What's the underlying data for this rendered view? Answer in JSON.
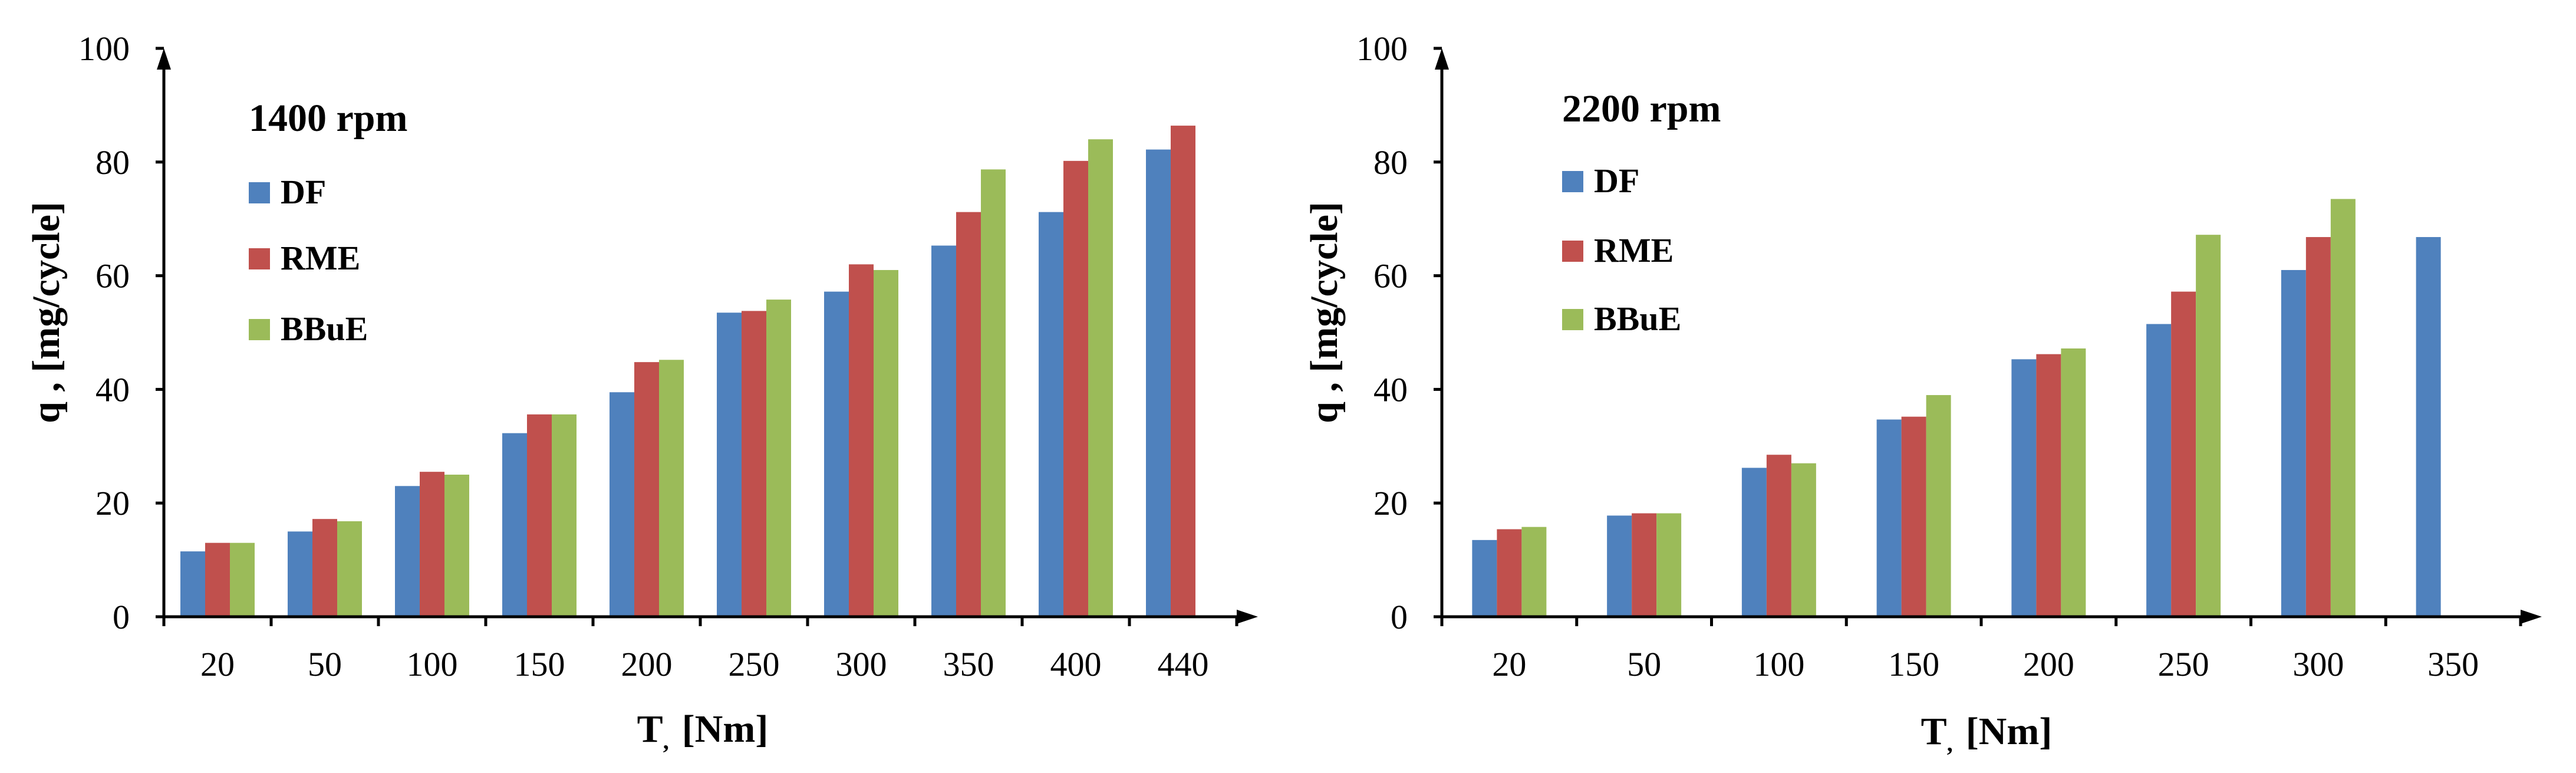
{
  "colors": {
    "DF": "#4f81bd",
    "RME": "#c0504d",
    "BBuE": "#9bbb59"
  },
  "chart_data": [
    {
      "type": "bar",
      "title": "1400 rpm",
      "xlabel": "T, [Nm]",
      "xlabel_main": "T",
      "xlabel_sub": ",",
      "xlabel_unit": "[Nm]",
      "ylabel": "q , [mg/cycle]",
      "ylim": [
        0,
        100
      ],
      "yticks": [
        0,
        20,
        40,
        60,
        80,
        100
      ],
      "yticklabels": [
        "0",
        "20",
        "40",
        "60",
        "80",
        "100"
      ],
      "categories": [
        "20",
        "50",
        "100",
        "150",
        "200",
        "250",
        "300",
        "350",
        "400",
        "440"
      ],
      "legend": "top-left",
      "series": [
        {
          "name": "DF",
          "values": [
            11.5,
            15,
            23,
            32.3,
            39.5,
            53.5,
            57.2,
            65.3,
            71.2,
            82.2
          ]
        },
        {
          "name": "RME",
          "values": [
            13,
            17.2,
            25.5,
            35.6,
            44.8,
            53.8,
            62,
            71.2,
            80.2,
            86.4
          ]
        },
        {
          "name": "BBuE",
          "values": [
            13,
            16.8,
            25,
            35.6,
            45.2,
            55.8,
            61,
            78.7,
            84,
            null
          ]
        }
      ]
    },
    {
      "type": "bar",
      "title": "2200 rpm",
      "xlabel": "T, [Nm]",
      "xlabel_main": "T",
      "xlabel_sub": ",",
      "xlabel_unit": "[Nm]",
      "ylabel": "q , [mg/cycle]",
      "ylim": [
        0,
        100
      ],
      "yticks": [
        0,
        20,
        40,
        60,
        80,
        100
      ],
      "yticklabels": [
        "0",
        "20",
        "40",
        "60",
        "80",
        "100"
      ],
      "categories": [
        "20",
        "50",
        "100",
        "150",
        "200",
        "250",
        "300",
        "350"
      ],
      "legend": "top-left",
      "series": [
        {
          "name": "DF",
          "values": [
            13.5,
            17.8,
            26.2,
            34.7,
            45.3,
            51.5,
            61,
            66.8
          ]
        },
        {
          "name": "RME",
          "values": [
            15.4,
            18.2,
            28.5,
            35.2,
            46.2,
            57.2,
            66.8,
            null
          ]
        },
        {
          "name": "BBuE",
          "values": [
            15.8,
            18.2,
            27,
            39,
            47.2,
            67.2,
            73.5,
            null
          ]
        }
      ]
    }
  ]
}
